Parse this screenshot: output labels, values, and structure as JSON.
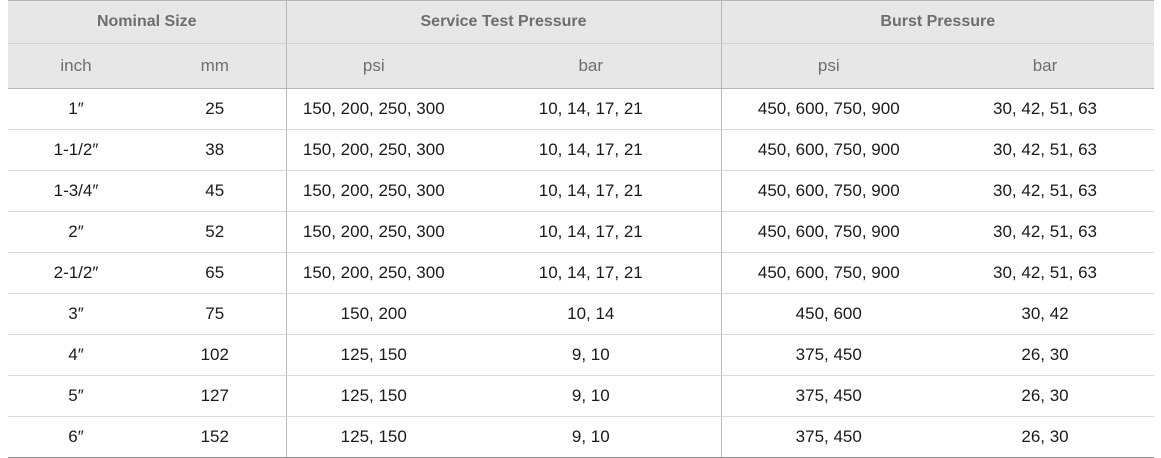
{
  "table": {
    "group_headers": {
      "nominal_size": "Nominal Size",
      "service_test_pressure": "Service Test Pressure",
      "burst_pressure": "Burst Pressure"
    },
    "unit_headers": {
      "inch": "inch",
      "mm": "mm",
      "service_psi": "psi",
      "service_bar": "bar",
      "burst_psi": "psi",
      "burst_bar": "bar"
    },
    "rows": [
      [
        "1″",
        "25",
        "150, 200, 250, 300",
        "10, 14, 17, 21",
        "450, 600, 750, 900",
        "30, 42, 51, 63"
      ],
      [
        "1-1/2″",
        "38",
        "150, 200, 250, 300",
        "10, 14, 17, 21",
        "450, 600, 750, 900",
        "30, 42, 51, 63"
      ],
      [
        "1-3/4″",
        "45",
        "150, 200, 250, 300",
        "10, 14, 17, 21",
        "450, 600, 750, 900",
        "30, 42, 51, 63"
      ],
      [
        "2″",
        "52",
        "150, 200, 250, 300",
        "10, 14, 17, 21",
        "450, 600, 750, 900",
        "30, 42, 51, 63"
      ],
      [
        "2-1/2″",
        "65",
        "150, 200, 250, 300",
        "10, 14, 17, 21",
        "450, 600, 750, 900",
        "30, 42, 51, 63"
      ],
      [
        "3″",
        "75",
        "150, 200",
        "10, 14",
        "450, 600",
        "30, 42"
      ],
      [
        "4″",
        "102",
        "125, 150",
        "9, 10",
        "375, 450",
        "26, 30"
      ],
      [
        "5″",
        "127",
        "125, 150",
        "9, 10",
        "375, 450",
        "26, 30"
      ],
      [
        "6″",
        "152",
        "125, 150",
        "9, 10",
        "375, 450",
        "26, 30"
      ]
    ]
  },
  "colors": {
    "header_background": "#e7e7e7",
    "header_text": "#6e6e6e",
    "body_text": "#1a1a1a",
    "rule": "#b5b5b5"
  }
}
